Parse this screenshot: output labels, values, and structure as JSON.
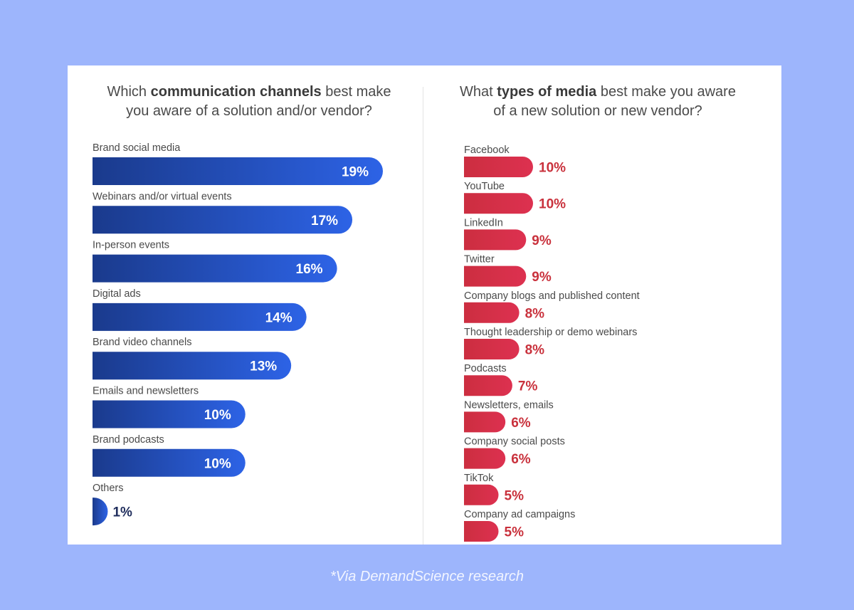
{
  "left_title": {
    "line1_pre": "Which ",
    "line1_bold": "communication channels",
    "line1_post": " best make",
    "line2": "you aware of a solution and/or vendor?"
  },
  "right_title": {
    "line1_pre": "What ",
    "line1_bold": "types of media",
    "line1_post": " best make you aware",
    "line2": "of a new solution or new vendor?"
  },
  "footer": "*Via DemandScience research",
  "colors": {
    "background": "#9db5fc",
    "card": "#ffffff",
    "blue_light": "#2d63e6",
    "blue_dark": "#1a3a8c",
    "red": "#dd3150",
    "red_dark": "#cc2e40",
    "red_text": "#c9313c",
    "label_text": "#4a4a4a"
  },
  "chart_data": [
    {
      "type": "bar",
      "orientation": "horizontal",
      "title": "Which communication channels best make you aware of a solution and/or vendor?",
      "categories": [
        "Brand social media",
        "Webinars and/or virtual events",
        "In-person events",
        "Digital ads",
        "Brand video channels",
        "Emails and newsletters",
        "Brand podcasts",
        "Others"
      ],
      "values": [
        19,
        17,
        16,
        14,
        13,
        10,
        10,
        1
      ],
      "value_labels": [
        "19%",
        "17%",
        "16%",
        "14%",
        "13%",
        "10%",
        "10%",
        "1%"
      ],
      "unit": "%",
      "data_labels": "inside bar end",
      "grid": false,
      "legend": "none"
    },
    {
      "type": "bar",
      "orientation": "horizontal",
      "title": "What types of media best make you aware of a new solution or new vendor?",
      "categories": [
        "Facebook",
        "YouTube",
        "LinkedIn",
        "Twitter",
        "Company blogs and published content",
        "Thought leadership or demo webinars",
        "Podcasts",
        "Newsletters, emails",
        "Company social posts",
        "TikTok",
        "Company ad campaigns"
      ],
      "values": [
        10,
        10,
        9,
        9,
        8,
        8,
        7,
        6,
        6,
        5,
        5
      ],
      "value_labels": [
        "10%",
        "10%",
        "9%",
        "9%",
        "8%",
        "8%",
        "7%",
        "6%",
        "6%",
        "5%",
        "5%"
      ],
      "unit": "%",
      "data_labels": "outside bar end",
      "grid": false,
      "legend": "none"
    }
  ]
}
